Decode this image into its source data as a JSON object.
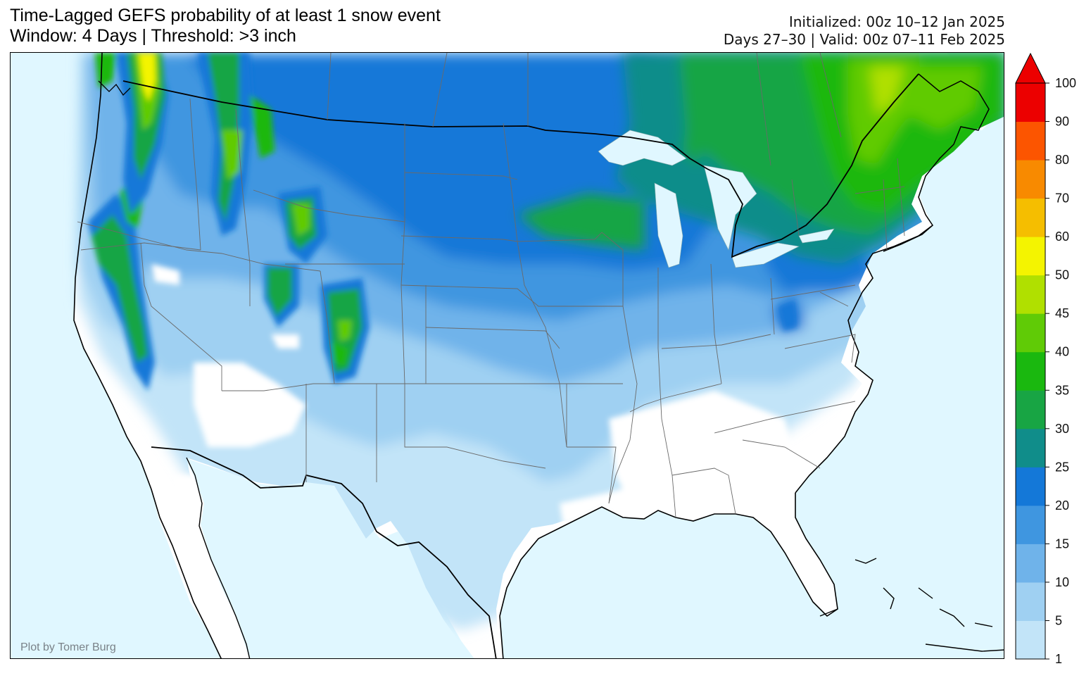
{
  "title": {
    "line1": "Time-Lagged GEFS probability of at least 1 snow event",
    "line2": "Window: 4 Days | Threshold: >3 inch"
  },
  "run_info": {
    "initialized": "Initialized: 00z 10–12 Jan 2025",
    "valid": "Days 27–30 | Valid: 00z 07–11 Feb 2025"
  },
  "credit": "Plot by Tomer Burg",
  "colorbar": {
    "levels": [
      1,
      5,
      10,
      15,
      20,
      25,
      30,
      35,
      40,
      45,
      50,
      60,
      70,
      80,
      90,
      100
    ],
    "colors": [
      "#c2e4f8",
      "#9fd0f2",
      "#6fb3ea",
      "#3f96e0",
      "#1478d8",
      "#108d8a",
      "#18a544",
      "#1ab80f",
      "#60cb06",
      "#b0e000",
      "#f4f400",
      "#f5be00",
      "#f88a00",
      "#fc5500",
      "#ec0000"
    ],
    "extend_color": "#ec0000"
  },
  "map_colors": {
    "ocean": "#e0f7ff",
    "land": "#ffffff",
    "lakes": "#e0f7ff",
    "coast": "#000000",
    "state_lines": "#6a6a6a"
  }
}
